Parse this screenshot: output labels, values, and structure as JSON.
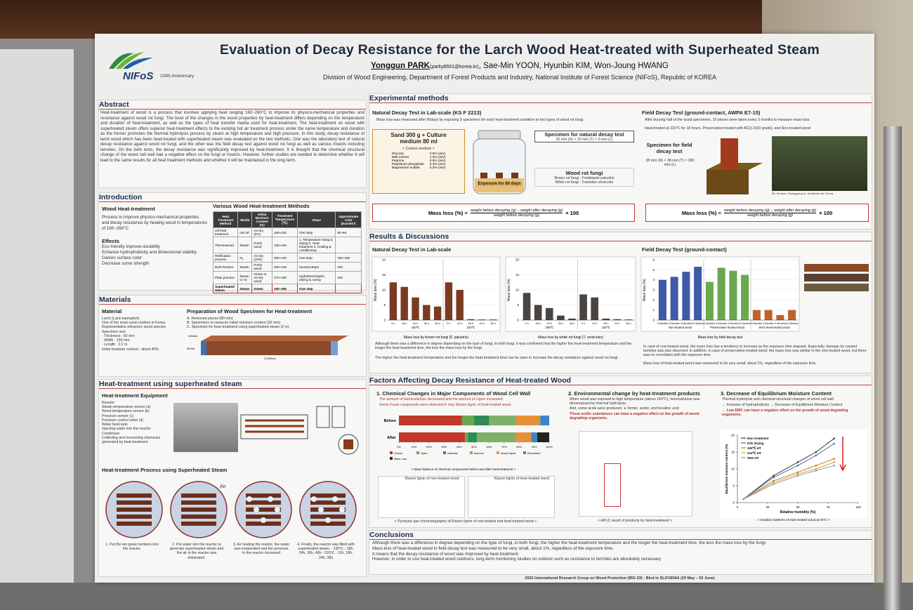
{
  "header": {
    "logo": "NIFoS",
    "anniversary": "100th Anniversary",
    "title": "Evaluation of Decay Resistance for the Larch Wood Heat-treated with Superheated Steam",
    "presenter": "Yonggun PARK",
    "presenter_email": "(parky8551@korea.kr)",
    "coauthors": ", Sae-Min YOON, Hyunbin KIM, Won-Joung HWANG",
    "affiliation": "Division of Wood Engineering, Department of Forest Products and Industry, National Institute of Forest Science (NIFoS), Republic of KOREA"
  },
  "abstract": {
    "heading": "Abstract",
    "text": "Heat-treatment of wood is a process that involves applying heat ranging 160~260°C to improve its physico-mechanical properties and resistance against wood rot fungi. The level of the changes in the wood properties by heat-treatment differs depending on the temperature and duration of heat-treatment, as well as the types of heat transfer media used for heat-treatment. The heat-treatment on wood with superheated steam offers superior heat-treatment effects to the existing hot air treatment process under the same temperature and duration as the former promotes the thermal hydrolysis process by steam at high temperature and high pressure. In this study, decay resistance of larch wood which has been heat-treated with superheated steam was evaluated on the two methods. One was the laboratory test of natural decay resistance against wood rot fungi, and the other was the field decay test against wood rot fungi as well as various insects including termites. On the both tests, the decay resistance was significantly improved by heat-treatment. It is thought that the chemical structural change of the wood cell wall had a negative effect on the fungi or insects. However, further studies are needed to determine whether it will lead to the same results for all heat treatment methods and whether it will be maintained in the long term."
  },
  "introduction": {
    "heading": "Introduction",
    "sub1": "Wood Heat-treatment",
    "sub1_text": "Process to improve physico-mechanical properties and decay resistance by heating wood in temperatures of 160~260°C",
    "effects": "Effects",
    "effect_items": [
      "Eco-friendly improve durability",
      "Enhance hydrophobicity and dimensional stability",
      "Darken surface color",
      "Decrease some strength"
    ],
    "sub2": "Various Wood Heat-treatment Methods",
    "table_header": [
      "Heat Treatment Method",
      "Media",
      "Initial Moisture Content (%)",
      "Treatment Temperature (℃)",
      "Steps",
      "Approximate Cost (Euro/m³)"
    ],
    "table_rows": [
      [
        "Oil-heat treatment",
        "Hot oil",
        "Air-dry (0%)",
        "180~220",
        "One Step",
        "50~66"
      ],
      [
        "Thermowood",
        "Steam",
        "Fresh wood",
        "130~240",
        "1. Temperature rising & drying 2. Heat treatment 3. Cooling & conditioning",
        null
      ],
      [
        "Retification process",
        "N₂",
        "Air-dry (10%)",
        "200~240",
        "One step",
        "150~180"
      ],
      [
        "Bois Perdure",
        "Steam",
        "Fresh wood",
        "200~240",
        "Several steps",
        "100"
      ],
      [
        "Plato process",
        "Steam or Air",
        "Green or Air-dry wood",
        "170~180",
        "Hydrothermolysis, drying & curing",
        "100"
      ],
      [
        "Superheated Steam",
        "Steam",
        "Green",
        "150~250",
        "One step",
        null
      ]
    ]
  },
  "materials": {
    "heading": "Materials",
    "sub1": "Material",
    "items": [
      "Larch (Larix kaempferi)",
      "One of the most used conifers in Korea",
      "Representative refractory wood species",
      "Specimen size",
      "· Thickness : 50 mm",
      "· Width : 150 mm",
      "· Length : 2.2 m",
      "Initial moisture content : about 40%"
    ],
    "sub2": "Preparation of Wood Specimen for Heat-treatment",
    "steps": [
      "A. Removed pieces (80 mm)",
      "B. Specimens to measure initial moisture content (20 mm)",
      "C. Specimen for heat-treatment using superheated steam (2 m)"
    ],
    "dim_labels": [
      "150mm",
      "50mm",
      "2,200mm"
    ]
  },
  "heat_treatment": {
    "heading": "Heat-treatment using superheated steam",
    "sub1": "Heat-treatment Equipment",
    "equipment": [
      "Reactor",
      "Steam temperature sensor (a)",
      "Wood temperature sensor (b)",
      "Pressure sensor (c)",
      "Pressure control valve (d)",
      "Water feed-tank",
      "Injecting water into the reactor",
      "Condenser",
      "Collecting and recovering chemicals generated by heat-treatment"
    ],
    "sub2": "Heat-treatment Process using Superheated Steam",
    "air": "Air",
    "process": [
      "1. Put the ten green lumbers into the reactor.",
      "2. Put water into the reactor to generate superheated steam and the air in the reactor was eliminated.",
      "3. As heating the reactor, the water was evaporated and the pressure in the reactor increased",
      "4. Finally, the reactor was filled with superheated steam. - 190℃ : 18h, 24h, 36h, 48h - 220℃ : 12h, 18h, 24h, 36h"
    ]
  },
  "methods": {
    "heading": "Experimental methods",
    "lab_heading": "Natural Decay Test in Lab-scale (KS F 2213)",
    "lab_text": "Mass loss was measured after 60days by exposing 9 specimens for each heat-treatment condition to two types of wood rot fungi.",
    "medium_title": "Sand 300 g + Culture medium 80 ml",
    "medium_sub": "< Culture medium >",
    "medium_rows": [
      [
        "Glucose",
        "2.5% (w/v)"
      ],
      [
        "Malt extract",
        "1.0% (w/v)"
      ],
      [
        "Peptone",
        "0.5% (w/v)"
      ],
      [
        "Potassium phosphate",
        "0.3% (w/v)"
      ],
      [
        "Magnesium sulfate",
        "0.2% (w/v)"
      ]
    ],
    "exposure": "Exposure for 60 days",
    "specimen_title": "Specimen for natural decay test",
    "specimen_size": "25 mm (R) × 25 mm (T) × 9 mm (L)",
    "fungi_title": "Wood rot fungi",
    "fungi": [
      "Brown rot fungi : Fomitopsis palustris",
      "White rot fungi : Trametes versicolor"
    ],
    "formula_prefix": "Mass loss (%) =",
    "formula_num": "weight before decaying (g) − weight after decaying (g)",
    "formula_den": "weight before decaying (g)",
    "formula_suffix": "× 100",
    "field_heading": "Field Decay Test (ground-contact, AWPA E7-15)",
    "field_items": [
      "After burying half of the wood specimens, 10 pieces were taken every 3 months to measure mass loss.",
      "Heat-treated at 220°C for 18 hours, Preservative-treated with ACQ-2(H3 grade), and Non-treated wood"
    ],
    "field_specimen": "Specimen for field decay test",
    "field_size": "38 mm (R) × 38 mm (T) × 300 mm (L)",
    "site": "Mt. Seokun, Gwangyang-si, Jeollanam-do, Korea"
  },
  "results": {
    "heading": "Results & Discussions",
    "lab_heading": "Natural Decay Test in Lab-scale",
    "field_heading": "Field Decay Test (ground-contact)",
    "lab_notes": [
      "Although there was a difference in degree depending on the type of fungi, in both fungi, it was confirmed that the higher the heat-treatment temperature and the longer the heat-treatment time, the less the mass loss by the fungi.",
      "The higher the heat-treatment temperature and the longer the heat-treatment time can be seen to increase the decay resistance against wood rot fungi."
    ],
    "field_notes": [
      "In case of non-treated wood, the mass loss has a tendency to increase as the exposure time elapsed. Especially, damage by caused termites was also observed. In addition, in case of preservative-treated wood, the mass loss was similar to the non-treated wood, but there was no correlation with the exposure time.",
      "Mass loss of heat-treated wood was measured to be very small, about 1%, regardless of the exposure time."
    ]
  },
  "charts": {
    "brown": {
      "type": "bar",
      "caption": "Mass loss by brown rot fungi (F. palustris)",
      "ylabel": "Mass loss (%)",
      "ylim": [
        0,
        20
      ],
      "yticks": [
        0,
        5,
        10,
        15,
        20
      ],
      "series": [
        {
          "name": "190℃",
          "color": "#7a3b22",
          "categories": [
            "0 h",
            "18 h",
            "24 h",
            "36 h",
            "48 h"
          ],
          "values": [
            12.5,
            11,
            7.5,
            5,
            4.5
          ]
        },
        {
          "name": "220℃",
          "color": "#7a3b22",
          "categories": [
            "0 h",
            "12 h",
            "18 h",
            "24 h",
            "36 h"
          ],
          "values": [
            12.5,
            10,
            0.3,
            0.2,
            0.2
          ]
        }
      ]
    },
    "white": {
      "type": "bar",
      "caption": "Mass loss by white rot fungi (T. versicolor)",
      "ylabel": "Mass loss (%)",
      "ylim": [
        0,
        20
      ],
      "yticks": [
        0,
        5,
        10,
        15,
        20
      ],
      "series": [
        {
          "name": "190℃",
          "color": "#4a4440",
          "categories": [
            "0 h",
            "18 h",
            "24 h",
            "36 h",
            "48 h"
          ],
          "values": [
            9,
            5,
            4,
            1.5,
            0.5
          ]
        },
        {
          "name": "220℃",
          "color": "#4a4440",
          "categories": [
            "0 h",
            "12 h",
            "18 h",
            "24 h",
            "36 h"
          ],
          "values": [
            8.5,
            7.5,
            0.5,
            0.3,
            0.2
          ]
        }
      ]
    },
    "field": {
      "type": "bar",
      "caption": "Mass loss by field decay test",
      "ylabel": "Mass loss (%)",
      "ylim": [
        0,
        6
      ],
      "yticks": [
        0,
        1,
        2,
        3,
        4,
        5,
        6
      ],
      "series": [
        {
          "name": "Non-treated wood",
          "color": "#3f5aa6",
          "categories": [
            "3 Months",
            "6 Months",
            "9 Months",
            "12 Months"
          ],
          "values": [
            4,
            4.3,
            4.8,
            5.3
          ]
        },
        {
          "name": "Preservative-treated wood",
          "color": "#6aa84f",
          "categories": [
            "3 Months",
            "6 Months",
            "9 Months",
            "12 Months"
          ],
          "values": [
            3.8,
            5.2,
            4.9,
            4.5
          ]
        },
        {
          "name": "SHS Heat-treated wood",
          "color": "#c0612b",
          "categories": [
            "3 Months",
            "6 Months",
            "9 Months",
            "12 Months"
          ],
          "values": [
            1,
            1,
            0.5,
            1
          ]
        }
      ]
    },
    "sorption": {
      "type": "line",
      "caption": "< Sorption isotherm of each treated wood at 20°C >",
      "xlabel": "Relative humidity (%)",
      "ylabel": "Equilibrium moisture content (%)",
      "x": [
        5,
        30,
        50,
        65,
        80
      ],
      "xlim": [
        0,
        100
      ],
      "xticks": [
        0,
        25,
        50,
        75,
        100
      ],
      "ylim": [
        0,
        20
      ],
      "yticks": [
        0,
        5,
        10,
        15,
        20
      ],
      "series": [
        {
          "name": "Non treatment",
          "color": "#3a3a3a",
          "values": [
            1,
            8,
            12,
            15,
            19
          ]
        },
        {
          "name": "Kiln drying",
          "color": "#4a6fa5",
          "values": [
            1,
            7.5,
            11,
            14,
            17.5
          ]
        },
        {
          "name": "190℃ HT",
          "color": "#c77b30",
          "values": [
            1,
            6.5,
            9,
            11,
            13
          ]
        },
        {
          "name": "210℃ HT",
          "color": "#d9a441",
          "values": [
            1,
            6,
            8.5,
            10,
            12
          ]
        },
        {
          "name": "SHS HT",
          "color": "#999999",
          "values": [
            1,
            5.5,
            8,
            9.5,
            11
          ]
        }
      ]
    },
    "chem": {
      "type": "stacked-bar",
      "caption": "< Mass balance of chemical components before and after heat-treatment >",
      "categories": [
        "Before",
        "After"
      ],
      "xlim": [
        0,
        100
      ],
      "xticks": [
        {
          "value": 0,
          "label": "0%"
        },
        {
          "value": 10,
          "label": "10%"
        },
        {
          "value": 20,
          "label": "20%"
        },
        {
          "value": 30,
          "label": "30%"
        },
        {
          "value": 40,
          "label": "40%"
        },
        {
          "value": 50,
          "label": "50%"
        },
        {
          "value": 60,
          "label": "60%"
        },
        {
          "value": 70,
          "label": "70%"
        },
        {
          "value": 80,
          "label": "80%"
        },
        {
          "value": 90,
          "label": "90%"
        },
        {
          "value": 100,
          "label": "100%"
        }
      ],
      "series": [
        {
          "name": "Glucan",
          "color": "#c0392b",
          "values": [
            42,
            44
          ]
        },
        {
          "name": "Xylan",
          "color": "#6aa84f",
          "values": [
            8,
            2
          ]
        },
        {
          "name": "Galactan",
          "color": "#2e8b57",
          "values": [
            10,
            6
          ]
        },
        {
          "name": "Mannan",
          "color": "#7fb069",
          "values": [
            18,
            26
          ]
        },
        {
          "name": "Klason lignin",
          "color": "#e69138",
          "values": [
            16,
            10
          ]
        },
        {
          "name": "Extractives",
          "color": "#3d85c6",
          "values": [
            6,
            4
          ]
        },
        {
          "name": "Mass Loss",
          "color": "#222222",
          "values": [
            0,
            8
          ]
        }
      ]
    }
  },
  "factors": {
    "heading": "Factors Affecting Decay Resistance of Heat-treated Wood",
    "f1_title": "1. Chemical Changes in Major Components of Wood Cell Wall",
    "f1_items": [
      "The amount of Hemicellulose decreased and the amount of Lignin increased.",
      "Some Furan compounds were detected in only Klason lignin of heat-treated wood."
    ],
    "py_labels": [
      "Klason lignin of non-treated wood",
      "Klason lignin of heat-treated wood"
    ],
    "py_caption": "< Pyrolysis gas chromatography of Klason lignin of non-treated and heat-treated wood >",
    "f2_title": "2. Environmental change by heat-treatment products",
    "f2_items": [
      "When wood was exposed to high temperature (above 160°C), hemicellulose was decomposed by thermal hydrolysis.",
      "And, some acids were produced. ※ formic, acetic, and levulinic acid",
      "These acidic substances can have a negative effect on the growth of wood-degrading organisms."
    ],
    "hplc_caption": "< HPLC result of products by heat-treatment >",
    "f3_title": "3. Decrease of Equilibrium Moisture Content",
    "f3_items": [
      "Thermal hydrolysis and chemical-structural changes of wood cell wall",
      "→ Increase of hydrophobicity → Decrease of Equilibrium Moisture Content",
      "→ Low EMC can have a negative effect on the growth of wood-degrading organisms."
    ]
  },
  "conclusions": {
    "heading": "Conclusions",
    "items": [
      "Although there was a difference in degree depending on the type of fungi, in both fungi, the higher the heat-treatment temperature and the longer the heat-treatment time, the less the mass loss by the fungi.",
      "Mass loss of heat-treated wood in field decay test was measured to be very small, about 1%, regardless of the exposure time.",
      "It means that the decay resistance of wood was improved by heat-treatment.",
      "However, in order to use heat-treated wood outdoors, long-term monitoring studies on outdoor such as resistance to termites are absolutely necessary."
    ]
  },
  "footer": "2022 International Research Group on Wood Protection (IRG 53) - Bled in SLOVENIA (29 May – 02 June)"
}
